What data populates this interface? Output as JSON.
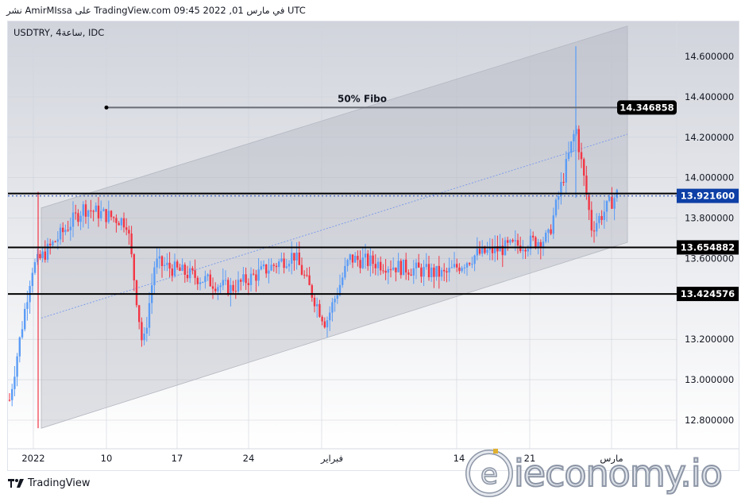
{
  "header": {
    "title": "نشر AmirMIssa على TradingView.com 09:45 2022 ,01 في مارس UTC"
  },
  "chart": {
    "symbol_label": "USDTRY, 4ساعة, IDC",
    "fibo_label": "50% Fibo"
  },
  "footer": {
    "brand": "TradingView"
  },
  "watermark": {
    "text": "ieconomy.io"
  },
  "colors": {
    "up": "#5b9cf6",
    "down": "#f23645",
    "level_line": "#000000",
    "current_price_bg": "#0d3fa6",
    "channel_fill": "#c9cbd2"
  },
  "chart_data": {
    "type": "candlestick",
    "title": "USDTRY, 4H, IDC",
    "xlabel": "",
    "ylabel": "",
    "x_ticks": [
      "2022",
      "10",
      "17",
      "24",
      "فبراير",
      "14",
      "21",
      "مارس"
    ],
    "y_ticks": [
      "14.600000",
      "14.400000",
      "14.200000",
      "14.000000",
      "13.800000",
      "13.600000",
      "13.200000",
      "13.000000",
      "12.800000"
    ],
    "ylim": [
      12.68,
      14.75
    ],
    "price_labels": [
      {
        "value": "14.346858",
        "style": "black",
        "annotation": "50% Fibo"
      },
      {
        "value": "13.921600",
        "style": "current-price-blue"
      },
      {
        "value": "13.654882",
        "style": "black"
      },
      {
        "value": "13.424576",
        "style": "black"
      }
    ],
    "horizontal_levels": [
      13.9216,
      13.654882,
      13.424576
    ],
    "fibo_line": 14.346858,
    "channel": {
      "lower_start": 12.76,
      "lower_end": 13.68,
      "upper_start": 13.85,
      "upper_end": 14.75
    },
    "approx_path": [
      {
        "t": "2022",
        "close": 12.9
      },
      {
        "t": "Jan 5",
        "close": 13.55
      },
      {
        "t": "Jan 8",
        "close": 13.85
      },
      {
        "t": "Jan 12",
        "close": 13.78
      },
      {
        "t": "Jan 13",
        "close": 13.15
      },
      {
        "t": "Jan 14",
        "close": 13.58
      },
      {
        "t": "Jan 24",
        "close": 13.45
      },
      {
        "t": "Jan 28",
        "close": 13.62
      },
      {
        "t": "Feb 1",
        "close": 13.28
      },
      {
        "t": "Feb 7",
        "close": 13.6
      },
      {
        "t": "Feb 11",
        "close": 13.52
      },
      {
        "t": "Feb 17",
        "close": 13.62
      },
      {
        "t": "Feb 21",
        "close": 13.7
      },
      {
        "t": "Feb 24",
        "close": 14.25,
        "high": 14.65
      },
      {
        "t": "Feb 25",
        "close": 13.75
      },
      {
        "t": "Feb 28",
        "close": 13.92
      }
    ]
  }
}
